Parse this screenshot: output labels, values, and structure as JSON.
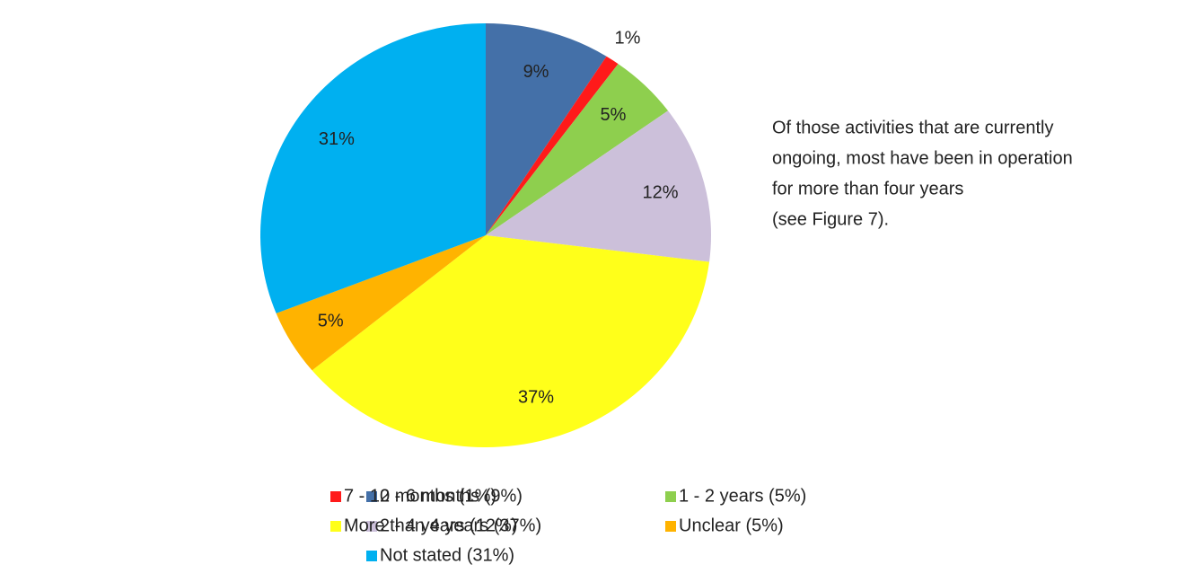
{
  "chart_data": {
    "type": "pie",
    "categories": [
      "0 - 6 months (9%)",
      "7 - 12 months (1%)",
      "1 - 2 years (5%)",
      "2 - 4 years (12%)",
      "More than 4 years (37%)",
      "Unclear (5%)",
      "Not stated (31%)"
    ],
    "values": [
      9,
      1,
      5,
      12,
      37,
      5,
      31
    ],
    "value_labels": [
      "9%",
      "1%",
      "5%",
      "12%",
      "37%",
      "5%",
      "31%"
    ],
    "colors": [
      "#4470a8",
      "#ff1a1a",
      "#8ecf4e",
      "#ccc0da",
      "#ffff1a",
      "#ffb300",
      "#00b0f0"
    ],
    "legend": "bottom",
    "annotation": [
      "Of those activities that are currently",
      "ongoing, most have been in operation",
      "for more than four years",
      "(see Figure 7)."
    ]
  }
}
